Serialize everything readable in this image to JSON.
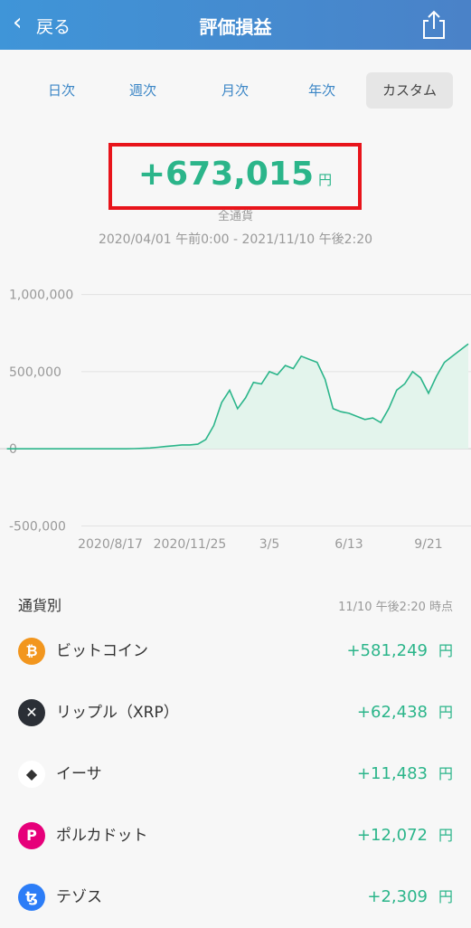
{
  "header": {
    "back": "戻る",
    "title": "評価損益"
  },
  "tabs": [
    "日次",
    "週次",
    "月次",
    "年次",
    "カスタム"
  ],
  "summary": {
    "amount": "+673,015",
    "unit": "円",
    "scope": "全通貨",
    "range": "2020/04/01 午前0:00 - 2021/11/10 午後2:20"
  },
  "chart_data": {
    "type": "area",
    "color": "#2bb58a",
    "fill": "#e3f4ec",
    "categories": [
      null,
      null,
      null,
      null,
      null,
      null,
      null,
      null,
      null,
      null,
      null,
      null,
      null,
      "2020/8/17",
      null,
      null,
      null,
      null,
      null,
      null,
      null,
      null,
      null,
      "2020/11/25",
      null,
      null,
      null,
      null,
      null,
      null,
      null,
      null,
      null,
      "3/5",
      null,
      null,
      null,
      null,
      null,
      null,
      null,
      null,
      null,
      "6/13",
      null,
      null,
      null,
      null,
      null,
      null,
      null,
      null,
      null,
      "9/21",
      null,
      null,
      null,
      null,
      null
    ],
    "values": [
      0,
      0,
      0,
      0,
      0,
      0,
      0,
      0,
      0,
      0,
      0,
      0,
      0,
      0,
      0,
      0,
      1000,
      3000,
      5000,
      10000,
      15000,
      20000,
      25000,
      25000,
      30000,
      60000,
      150000,
      300000,
      380000,
      260000,
      330000,
      430000,
      420000,
      500000,
      480000,
      540000,
      520000,
      600000,
      580000,
      560000,
      450000,
      260000,
      240000,
      230000,
      210000,
      190000,
      200000,
      170000,
      260000,
      380000,
      420000,
      500000,
      460000,
      360000,
      470000,
      560000,
      600000,
      640000,
      680000
    ],
    "ylim": [
      -550000,
      1150000
    ],
    "yticks": [
      {
        "value": -500000,
        "label": "-500,000"
      },
      0,
      {
        "value": 500000,
        "label": "500,000"
      },
      {
        "value": 1000000,
        "label": "1,000,000"
      }
    ],
    "grid": true
  },
  "list": {
    "title": "通貨別",
    "timestamp": "11/10 午後2:20 時点",
    "items": [
      {
        "name": "ビットコイン",
        "value": "+581,249",
        "unit": "円"
      },
      {
        "name": "リップル（XRP）",
        "value": "+62,438",
        "unit": "円"
      },
      {
        "name": "イーサ",
        "value": "+11,483",
        "unit": "円"
      },
      {
        "name": "ポルカドット",
        "value": "+12,072",
        "unit": "円"
      },
      {
        "name": "テゾス",
        "value": "+2,309",
        "unit": "円"
      }
    ]
  }
}
